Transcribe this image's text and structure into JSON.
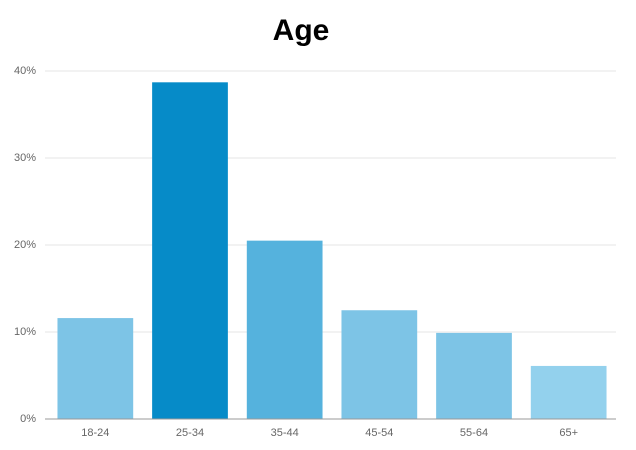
{
  "chart_data": {
    "type": "bar",
    "title": "Age",
    "categories": [
      "18-24",
      "25-34",
      "35-44",
      "45-54",
      "55-64",
      "65+"
    ],
    "values": [
      11.6,
      38.7,
      20.5,
      12.5,
      9.9,
      6.1
    ],
    "colors": [
      "#7dc4e6",
      "#068bc8",
      "#55b2dd",
      "#7dc4e6",
      "#7dc4e6",
      "#93d1ed"
    ],
    "ylim": [
      0,
      40
    ],
    "yticks": [
      {
        "value": 0,
        "label": "0%"
      },
      {
        "value": 10,
        "label": "10%"
      },
      {
        "value": 20,
        "label": "20%"
      },
      {
        "value": 30,
        "label": "30%"
      },
      {
        "value": 40,
        "label": "40%"
      }
    ],
    "grid": true
  }
}
